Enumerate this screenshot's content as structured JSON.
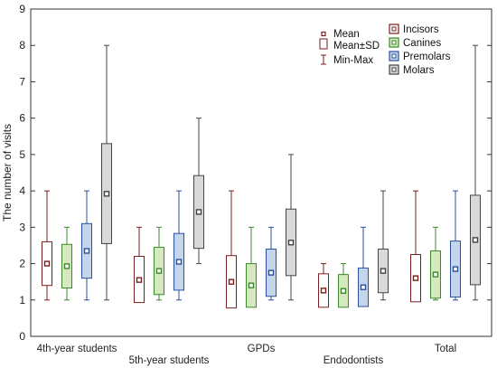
{
  "chart_data": {
    "type": "box",
    "ylabel": "The number of visits",
    "ylim": [
      0,
      9
    ],
    "yticks": [
      "0",
      "1",
      "2",
      "3",
      "4",
      "5",
      "6",
      "7",
      "8",
      "9"
    ],
    "categories": [
      "4th-year students",
      "5th-year students",
      "GPDs",
      "Endodontists",
      "Total"
    ],
    "grid": false,
    "legend_position": "top-right",
    "legend_stats": [
      {
        "key": "mean",
        "label": "Mean"
      },
      {
        "key": "sd",
        "label": "Mean±SD"
      },
      {
        "key": "minmax",
        "label": "Min-Max"
      }
    ],
    "series": [
      {
        "name": "Incisors",
        "edge": "#7a1f1f",
        "fill": "#ffffff",
        "stats": [
          {
            "min": 1,
            "max": 4,
            "mean": 2.0,
            "sd_low": 1.4,
            "sd_high": 2.6
          },
          {
            "min": 1,
            "max": 3,
            "mean": 1.55,
            "sd_low": 0.93,
            "sd_high": 2.2
          },
          {
            "min": 1,
            "max": 4,
            "mean": 1.5,
            "sd_low": 0.78,
            "sd_high": 2.22
          },
          {
            "min": 1,
            "max": 2,
            "mean": 1.26,
            "sd_low": 0.8,
            "sd_high": 1.72
          },
          {
            "min": 1,
            "max": 4,
            "mean": 1.6,
            "sd_low": 0.95,
            "sd_high": 2.25
          }
        ]
      },
      {
        "name": "Canines",
        "edge": "#3a8a2a",
        "fill": "#d6e8bf",
        "stats": [
          {
            "min": 1,
            "max": 3,
            "mean": 1.93,
            "sd_low": 1.33,
            "sd_high": 2.53
          },
          {
            "min": 1,
            "max": 3,
            "mean": 1.8,
            "sd_low": 1.15,
            "sd_high": 2.45
          },
          {
            "min": 1,
            "max": 3,
            "mean": 1.4,
            "sd_low": 0.8,
            "sd_high": 2.0
          },
          {
            "min": 1,
            "max": 2,
            "mean": 1.25,
            "sd_low": 0.8,
            "sd_high": 1.7
          },
          {
            "min": 1,
            "max": 3,
            "mean": 1.7,
            "sd_low": 1.05,
            "sd_high": 2.35
          }
        ]
      },
      {
        "name": "Premolars",
        "edge": "#2a4f9c",
        "fill": "#c5d6ec",
        "stats": [
          {
            "min": 1,
            "max": 4,
            "mean": 2.35,
            "sd_low": 1.6,
            "sd_high": 3.1
          },
          {
            "min": 1,
            "max": 4,
            "mean": 2.05,
            "sd_low": 1.27,
            "sd_high": 2.83
          },
          {
            "min": 1,
            "max": 3,
            "mean": 1.75,
            "sd_low": 1.1,
            "sd_high": 2.4
          },
          {
            "min": 1,
            "max": 3,
            "mean": 1.35,
            "sd_low": 0.82,
            "sd_high": 1.88
          },
          {
            "min": 1,
            "max": 4,
            "mean": 1.85,
            "sd_low": 1.08,
            "sd_high": 2.62
          }
        ]
      },
      {
        "name": "Molars",
        "edge": "#444444",
        "fill": "#d9d9d9",
        "stats": [
          {
            "min": 1,
            "max": 8,
            "mean": 3.92,
            "sd_low": 2.55,
            "sd_high": 5.3
          },
          {
            "min": 2,
            "max": 6,
            "mean": 3.42,
            "sd_low": 2.42,
            "sd_high": 4.42
          },
          {
            "min": 1,
            "max": 5,
            "mean": 2.58,
            "sd_low": 1.67,
            "sd_high": 3.5
          },
          {
            "min": 1,
            "max": 4,
            "mean": 1.8,
            "sd_low": 1.2,
            "sd_high": 2.4
          },
          {
            "min": 1,
            "max": 8,
            "mean": 2.65,
            "sd_low": 1.42,
            "sd_high": 3.88
          }
        ]
      }
    ]
  }
}
